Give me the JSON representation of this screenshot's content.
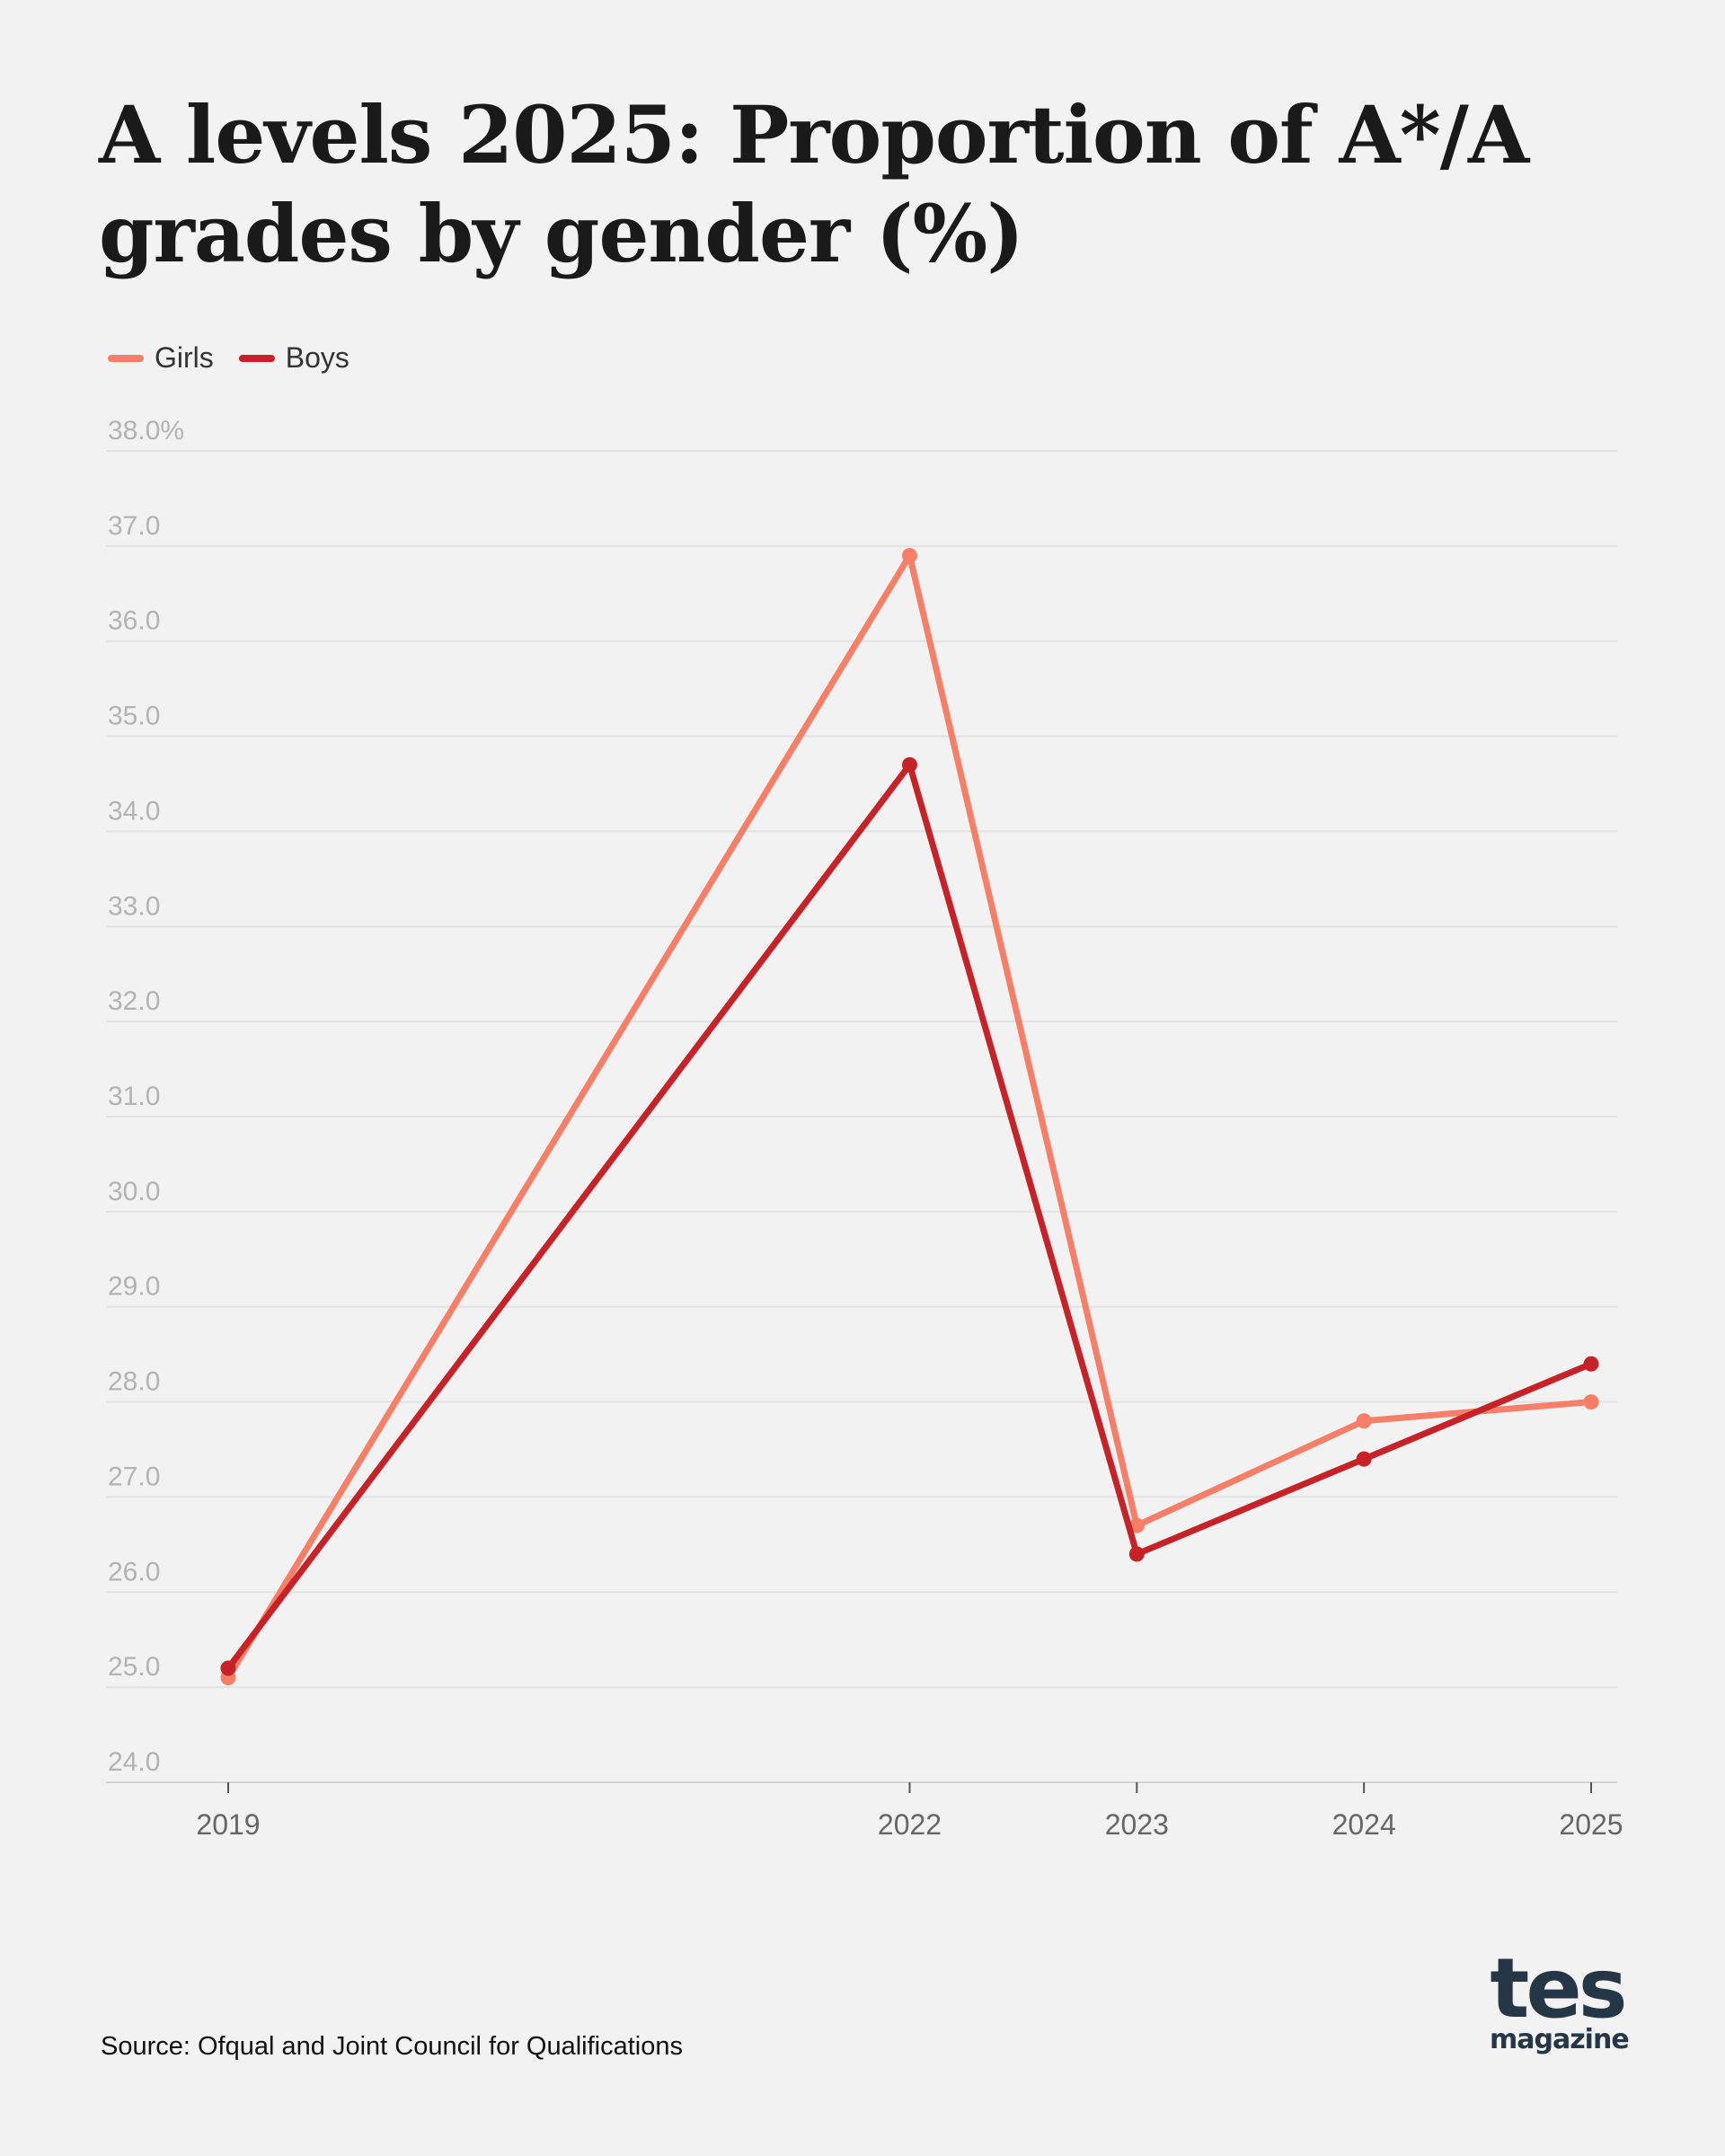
{
  "page": {
    "title": "A levels 2025: Proportion of A*/A grades by gender (%)",
    "source": "Source: Ofqual and Joint Council for Qualifications"
  },
  "logo": {
    "main": "tes",
    "sub": "magazine",
    "color": "#253746"
  },
  "chart_data": {
    "type": "line",
    "title": "A levels 2025: Proportion of A*/A grades by gender (%)",
    "xlabel": "",
    "ylabel": "",
    "x": [
      2019,
      2022,
      2023,
      2024,
      2025
    ],
    "x_tick_labels": [
      "2019",
      "2022",
      "2023",
      "2024",
      "2025"
    ],
    "ylim": [
      24,
      38
    ],
    "y_ticks": [
      24,
      25,
      26,
      27,
      28,
      29,
      30,
      31,
      32,
      33,
      34,
      35,
      36,
      37,
      38
    ],
    "y_tick_labels": [
      "24.0",
      "25.0",
      "26.0",
      "27.0",
      "28.0",
      "29.0",
      "30.0",
      "31.0",
      "32.0",
      "33.0",
      "34.0",
      "35.0",
      "36.0",
      "37.0",
      "38.0%"
    ],
    "grid": true,
    "legend_position": "top-left",
    "series": [
      {
        "name": "Girls",
        "color": "#f77e67",
        "values": [
          25.1,
          36.9,
          26.7,
          27.8,
          28.0
        ]
      },
      {
        "name": "Boys",
        "color": "#c62228",
        "values": [
          25.2,
          34.7,
          26.4,
          27.4,
          28.4
        ]
      }
    ]
  }
}
